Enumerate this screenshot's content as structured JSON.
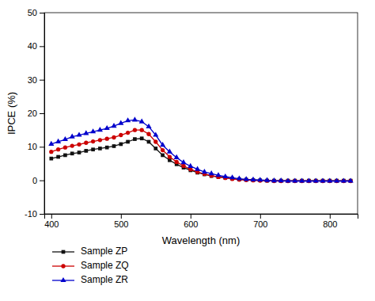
{
  "chart_data": {
    "type": "line",
    "xlabel": "Wavelength (nm)",
    "ylabel": "IPCE (%)",
    "xlim": [
      390,
      840
    ],
    "ylim": [
      -10,
      50
    ],
    "xticks": [
      400,
      500,
      600,
      700,
      800
    ],
    "yticks": [
      -10,
      0,
      10,
      20,
      30,
      40,
      50
    ],
    "grid": false,
    "legend": "lower left",
    "x": [
      400,
      410,
      420,
      430,
      440,
      450,
      460,
      470,
      480,
      490,
      500,
      510,
      520,
      530,
      540,
      550,
      560,
      570,
      580,
      590,
      600,
      610,
      620,
      630,
      640,
      650,
      660,
      670,
      680,
      690,
      700,
      710,
      720,
      730,
      740,
      750,
      760,
      770,
      780,
      790,
      800,
      810,
      820,
      830
    ],
    "series": [
      {
        "name": "Sample ZP",
        "color": "#111111",
        "marker": "square",
        "values": [
          6.5,
          7.0,
          7.5,
          8.0,
          8.3,
          8.8,
          9.2,
          9.5,
          9.8,
          10.2,
          10.8,
          11.5,
          12.3,
          12.5,
          11.5,
          9.5,
          7.5,
          6.0,
          4.8,
          3.8,
          3.0,
          2.3,
          1.8,
          1.3,
          1.0,
          0.8,
          0.5,
          0.3,
          0.2,
          0.1,
          0.0,
          -0.1,
          -0.1,
          -0.1,
          -0.1,
          -0.1,
          -0.1,
          -0.1,
          -0.1,
          -0.1,
          -0.1,
          -0.1,
          -0.1,
          -0.1
        ]
      },
      {
        "name": "Sample ZQ",
        "color": "#cc0000",
        "marker": "circle",
        "values": [
          8.5,
          9.2,
          9.8,
          10.3,
          10.7,
          11.2,
          11.6,
          12.0,
          12.4,
          12.8,
          13.5,
          14.2,
          15.0,
          15.0,
          13.8,
          11.5,
          9.0,
          7.0,
          5.5,
          4.3,
          3.3,
          2.5,
          1.9,
          1.4,
          1.0,
          0.7,
          0.4,
          0.2,
          0.1,
          0.0,
          -0.1,
          -0.1,
          -0.2,
          -0.2,
          -0.2,
          -0.2,
          -0.2,
          -0.2,
          -0.2,
          -0.2,
          -0.2,
          -0.2,
          -0.2,
          -0.2
        ]
      },
      {
        "name": "Sample ZR",
        "color": "#0000cc",
        "marker": "triangle",
        "values": [
          10.8,
          11.5,
          12.2,
          13.0,
          13.5,
          14.0,
          14.5,
          15.0,
          15.5,
          16.2,
          17.0,
          17.8,
          18.0,
          17.5,
          16.0,
          13.5,
          10.5,
          8.5,
          6.8,
          5.3,
          4.2,
          3.3,
          2.5,
          2.0,
          1.5,
          1.1,
          0.8,
          0.5,
          0.3,
          0.2,
          0.1,
          0.0,
          -0.1,
          -0.1,
          -0.2,
          -0.2,
          -0.2,
          -0.2,
          -0.2,
          -0.2,
          -0.2,
          -0.2,
          -0.2,
          -0.2
        ]
      }
    ]
  }
}
